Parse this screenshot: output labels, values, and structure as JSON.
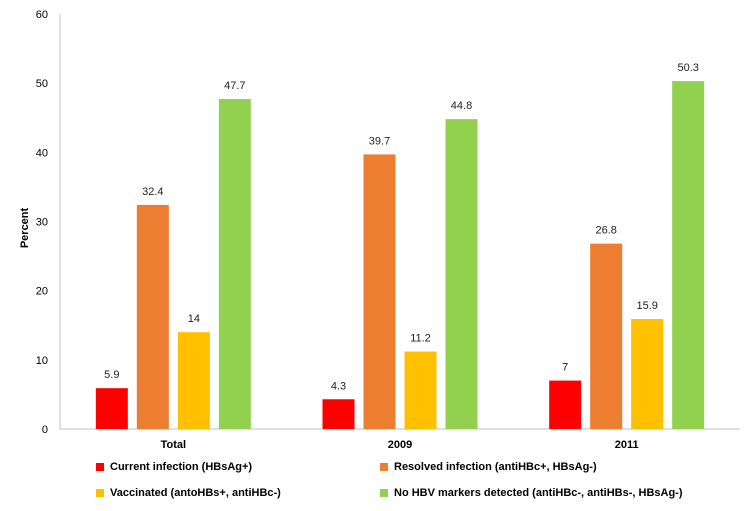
{
  "chart_data": {
    "type": "bar",
    "categories": [
      "Total",
      "2009",
      "2011"
    ],
    "series": [
      {
        "name": "Current infection (HBsAg+)",
        "color": "#ff0000",
        "values": [
          5.9,
          4.3,
          7
        ]
      },
      {
        "name": "Resolved infection (antiHBc+, HBsAg-)",
        "color": "#ed7d31",
        "values": [
          32.4,
          39.7,
          26.8
        ]
      },
      {
        "name": "Vaccinated (antoHBs+, antiHBc-)",
        "color": "#ffc000",
        "values": [
          14,
          11.2,
          15.9
        ]
      },
      {
        "name": "No HBV markers detected (antiHBc-, antiHBs-, HBsAg-)",
        "color": "#92d050",
        "values": [
          47.7,
          44.8,
          50.3
        ]
      }
    ],
    "title": "",
    "xlabel": "",
    "ylabel": "Percent",
    "ylim": [
      0,
      60
    ],
    "yticks": [
      0,
      10,
      20,
      30,
      40,
      50,
      60
    ],
    "grid": false,
    "legend_position": "bottom"
  }
}
